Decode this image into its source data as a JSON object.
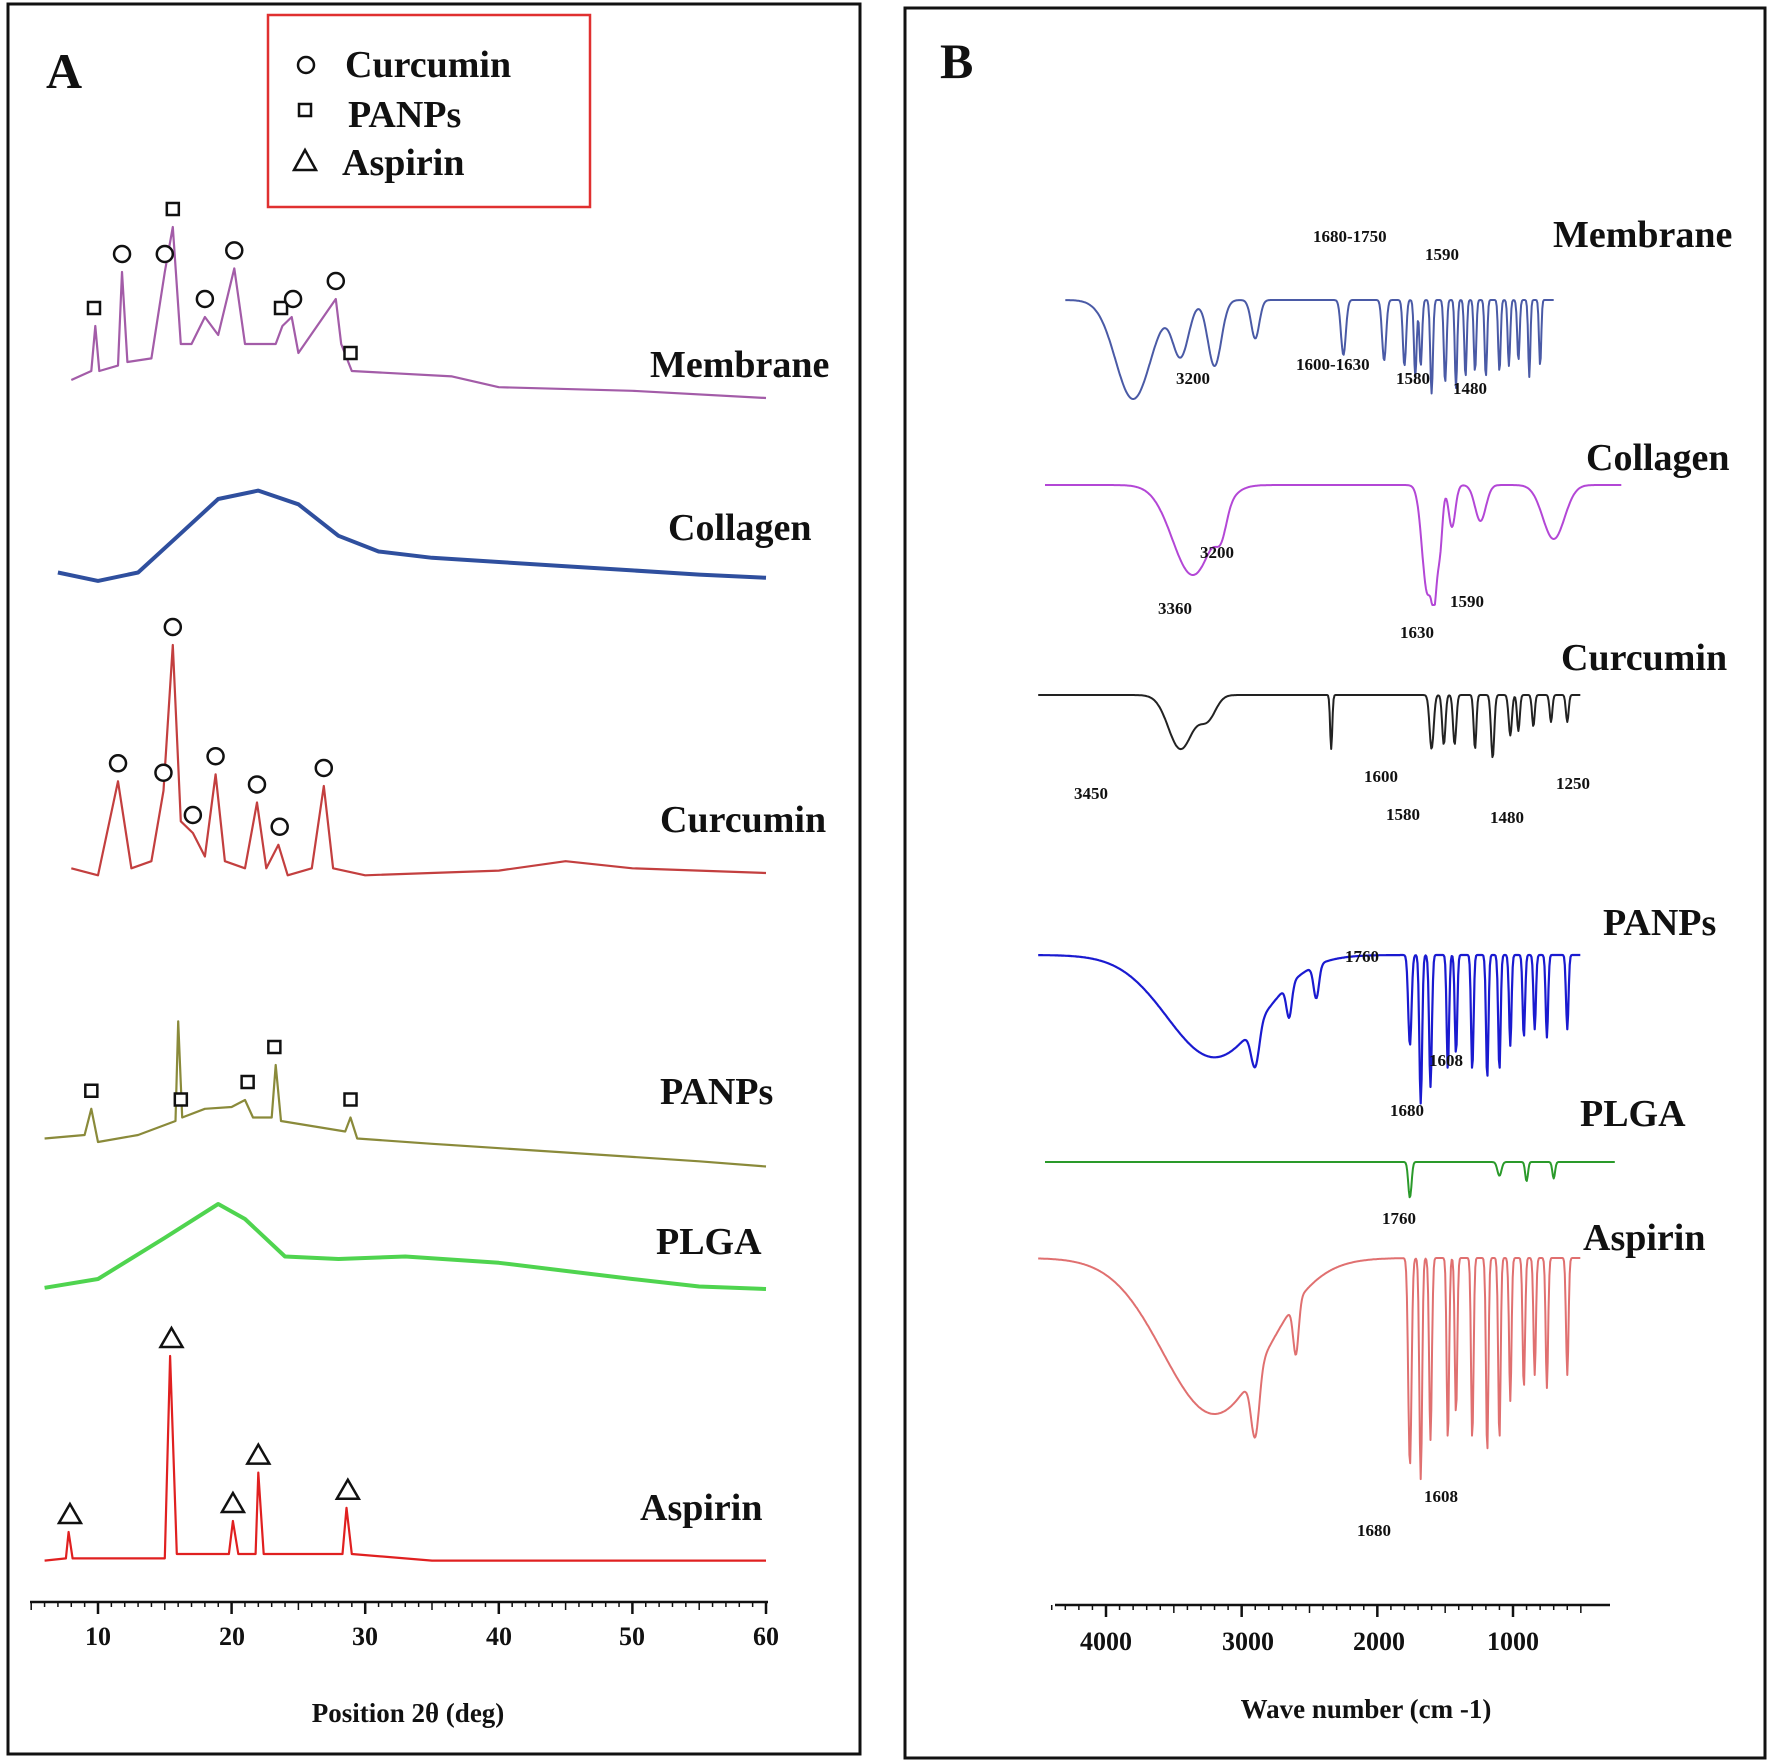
{
  "colors": {
    "membrane_xrd": "#a35ca8",
    "collagen_xrd": "#2f4f9e",
    "curcumin_xrd": "#c33f3f",
    "panps_xrd": "#8a8a3a",
    "plga_xrd": "#4fd44f",
    "aspirin_xrd": "#e02020",
    "membrane_ftir": "#4a5aa6",
    "collagen_ftir": "#b347d6",
    "curcumin_ftir": "#222222",
    "panps_ftir": "#1a1ad0",
    "plga_ftir": "#2a9a2a",
    "aspirin_ftir": "#e07070",
    "legend_border": "#e03030"
  },
  "panel_a": {
    "letter": "A",
    "legend": [
      {
        "symbol": "circle",
        "label": "Curcumin"
      },
      {
        "symbol": "square",
        "label": "PANPs"
      },
      {
        "symbol": "triangle",
        "label": "Aspirin"
      }
    ],
    "x_axis": {
      "title": "Position 2θ (deg)",
      "ticks": [
        "10",
        "20",
        "30",
        "40",
        "50",
        "60"
      ]
    }
  },
  "panel_b": {
    "letter": "B",
    "x_axis": {
      "title": "Wave number (cm -1)",
      "ticks": [
        "4000",
        "3000",
        "2000",
        "1000"
      ]
    }
  },
  "chart_data": [
    {
      "type": "line",
      "panel": "A",
      "xlabel": "Position 2θ (deg)",
      "ylabel": "",
      "xlim": [
        5,
        60
      ],
      "x_ticks": [
        10,
        20,
        30,
        40,
        50,
        60
      ],
      "series": [
        {
          "name": "Membrane",
          "color_key": "membrane_xrd",
          "points": [
            [
              8,
              0.1
            ],
            [
              9.5,
              0.15
            ],
            [
              9.8,
              0.4
            ],
            [
              10.1,
              0.15
            ],
            [
              11.5,
              0.18
            ],
            [
              11.8,
              0.7
            ],
            [
              12.2,
              0.2
            ],
            [
              14,
              0.22
            ],
            [
              15,
              0.7
            ],
            [
              15.6,
              0.95
            ],
            [
              16.2,
              0.3
            ],
            [
              17,
              0.3
            ],
            [
              18,
              0.45
            ],
            [
              19,
              0.35
            ],
            [
              20.2,
              0.72
            ],
            [
              21,
              0.3
            ],
            [
              23.3,
              0.3
            ],
            [
              23.8,
              0.4
            ],
            [
              24.5,
              0.45
            ],
            [
              25,
              0.25
            ],
            [
              27.8,
              0.55
            ],
            [
              28.2,
              0.3
            ],
            [
              29,
              0.15
            ],
            [
              36.5,
              0.12
            ],
            [
              40,
              0.06
            ],
            [
              50,
              0.04
            ],
            [
              60,
              0.0
            ]
          ],
          "markers": [
            [
              9.7,
              "square"
            ],
            [
              11.8,
              "circle"
            ],
            [
              15,
              "circle"
            ],
            [
              15.6,
              "square"
            ],
            [
              18,
              "circle"
            ],
            [
              20.2,
              "circle"
            ],
            [
              23.7,
              "square"
            ],
            [
              24.6,
              "circle"
            ],
            [
              27.8,
              "circle"
            ],
            [
              28.9,
              "square"
            ]
          ]
        },
        {
          "name": "Collagen",
          "color_key": "collagen_xrd",
          "points": [
            [
              7,
              0.1
            ],
            [
              10,
              0.02
            ],
            [
              13,
              0.1
            ],
            [
              16,
              0.45
            ],
            [
              19,
              0.8
            ],
            [
              22,
              0.88
            ],
            [
              25,
              0.75
            ],
            [
              28,
              0.45
            ],
            [
              31,
              0.3
            ],
            [
              35,
              0.24
            ],
            [
              40,
              0.2
            ],
            [
              45,
              0.16
            ],
            [
              50,
              0.12
            ],
            [
              55,
              0.08
            ],
            [
              60,
              0.05
            ]
          ],
          "markers": []
        },
        {
          "name": "Curcumin",
          "color_key": "curcumin_xrd",
          "points": [
            [
              8,
              0.05
            ],
            [
              10,
              0.02
            ],
            [
              11.5,
              0.42
            ],
            [
              12.5,
              0.05
            ],
            [
              14,
              0.08
            ],
            [
              14.9,
              0.38
            ],
            [
              15.6,
              1.0
            ],
            [
              16.2,
              0.25
            ],
            [
              17.1,
              0.2
            ],
            [
              18,
              0.1
            ],
            [
              18.8,
              0.45
            ],
            [
              19.5,
              0.08
            ],
            [
              21,
              0.05
            ],
            [
              21.9,
              0.33
            ],
            [
              22.6,
              0.05
            ],
            [
              23.5,
              0.15
            ],
            [
              24.2,
              0.02
            ],
            [
              26,
              0.05
            ],
            [
              26.9,
              0.4
            ],
            [
              27.6,
              0.05
            ],
            [
              30,
              0.02
            ],
            [
              40,
              0.04
            ],
            [
              45,
              0.08
            ],
            [
              50,
              0.05
            ],
            [
              60,
              0.03
            ]
          ],
          "markers": [
            [
              11.5,
              "circle"
            ],
            [
              14.9,
              "circle"
            ],
            [
              15.6,
              "circle"
            ],
            [
              17.1,
              "circle"
            ],
            [
              18.8,
              "circle"
            ],
            [
              21.9,
              "circle"
            ],
            [
              23.6,
              "circle"
            ],
            [
              26.9,
              "circle"
            ]
          ]
        },
        {
          "name": "PANPs",
          "color_key": "panps_xrd",
          "points": [
            [
              6,
              0.18
            ],
            [
              9,
              0.2
            ],
            [
              9.5,
              0.35
            ],
            [
              10,
              0.16
            ],
            [
              13,
              0.2
            ],
            [
              15.8,
              0.28
            ],
            [
              16,
              0.85
            ],
            [
              16.3,
              0.3
            ],
            [
              18,
              0.35
            ],
            [
              20,
              0.36
            ],
            [
              21,
              0.4
            ],
            [
              21.6,
              0.3
            ],
            [
              23,
              0.3
            ],
            [
              23.3,
              0.6
            ],
            [
              23.7,
              0.28
            ],
            [
              28.5,
              0.22
            ],
            [
              28.9,
              0.3
            ],
            [
              29.4,
              0.18
            ],
            [
              35,
              0.15
            ],
            [
              45,
              0.1
            ],
            [
              55,
              0.05
            ],
            [
              60,
              0.02
            ]
          ],
          "markers": [
            [
              9.5,
              "square"
            ],
            [
              16.2,
              "square"
            ],
            [
              21.2,
              "square"
            ],
            [
              23.2,
              "square"
            ],
            [
              28.9,
              "square"
            ]
          ]
        },
        {
          "name": "PLGA",
          "color_key": "plga_xrd",
          "points": [
            [
              6,
              0.05
            ],
            [
              10,
              0.12
            ],
            [
              15,
              0.45
            ],
            [
              19,
              0.72
            ],
            [
              21,
              0.6
            ],
            [
              24,
              0.3
            ],
            [
              28,
              0.28
            ],
            [
              33,
              0.3
            ],
            [
              40,
              0.25
            ],
            [
              50,
              0.12
            ],
            [
              55,
              0.06
            ],
            [
              60,
              0.04
            ]
          ],
          "markers": []
        },
        {
          "name": "Aspirin",
          "color_key": "aspirin_xrd",
          "points": [
            [
              6,
              0.02
            ],
            [
              7.6,
              0.03
            ],
            [
              7.8,
              0.15
            ],
            [
              8.1,
              0.03
            ],
            [
              15,
              0.03
            ],
            [
              15.4,
              0.95
            ],
            [
              15.9,
              0.05
            ],
            [
              19.8,
              0.05
            ],
            [
              20.1,
              0.2
            ],
            [
              20.5,
              0.05
            ],
            [
              21.8,
              0.05
            ],
            [
              22,
              0.42
            ],
            [
              22.4,
              0.05
            ],
            [
              28.3,
              0.05
            ],
            [
              28.6,
              0.26
            ],
            [
              29,
              0.05
            ],
            [
              35,
              0.02
            ],
            [
              45,
              0.02
            ],
            [
              60,
              0.02
            ]
          ],
          "markers": [
            [
              7.9,
              "triangle"
            ],
            [
              15.5,
              "triangle"
            ],
            [
              20.1,
              "triangle"
            ],
            [
              22,
              "triangle"
            ],
            [
              28.7,
              "triangle"
            ]
          ]
        }
      ]
    },
    {
      "type": "line",
      "panel": "B",
      "xlabel": "Wave number (cm -1)",
      "ylabel": "",
      "xlim": [
        4500,
        250
      ],
      "x_ticks": [
        4000,
        3000,
        2000,
        1000
      ],
      "series": [
        {
          "name": "Membrane",
          "color_key": "membrane_ftir",
          "peak_labels": [
            "3200",
            "1680-1750",
            "1590",
            "1600-1630",
            "1580",
            "1480"
          ]
        },
        {
          "name": "Collagen",
          "color_key": "collagen_ftir",
          "peak_labels": [
            "3200",
            "3360",
            "1590",
            "1630"
          ]
        },
        {
          "name": "Curcumin",
          "color_key": "curcumin_ftir",
          "peak_labels": [
            "3450",
            "1600",
            "1580",
            "1480",
            "1250"
          ]
        },
        {
          "name": "PANPs",
          "color_key": "panps_ftir",
          "peak_labels": [
            "1760",
            "1608",
            "1680"
          ]
        },
        {
          "name": "PLGA",
          "color_key": "plga_ftir",
          "peak_labels": [
            "1760"
          ]
        },
        {
          "name": "Aspirin",
          "color_key": "aspirin_ftir",
          "peak_labels": [
            "1608",
            "1680"
          ]
        }
      ]
    }
  ]
}
